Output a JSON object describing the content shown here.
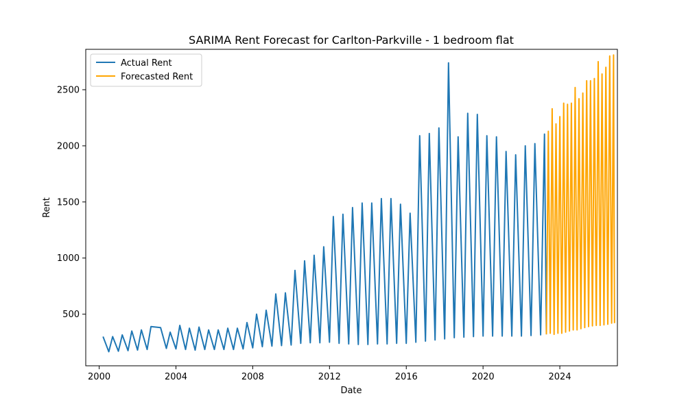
{
  "chart_data": {
    "type": "line",
    "title": "SARIMA Rent Forecast for Carlton-Parkville - 1 bedroom flat",
    "xlabel": "Date",
    "ylabel": "Rent",
    "xlim": [
      1999.3,
      2027.0
    ],
    "ylim": [
      40,
      2860
    ],
    "x_ticks": [
      2000,
      2004,
      2008,
      2012,
      2016,
      2020,
      2024
    ],
    "x_tick_labels": [
      "2000",
      "2004",
      "2008",
      "2012",
      "2016",
      "2020",
      "2024"
    ],
    "y_ticks": [
      500,
      1000,
      1500,
      2000,
      2500
    ],
    "y_tick_labels": [
      "500",
      "1000",
      "1500",
      "2000",
      "2500"
    ],
    "grid": false,
    "legend_position": "upper left",
    "series": [
      {
        "name": "Actual Rent",
        "color": "#1f77b4",
        "points": [
          [
            2000.2,
            300
          ],
          [
            2000.5,
            165
          ],
          [
            2000.7,
            300
          ],
          [
            2001.0,
            170
          ],
          [
            2001.2,
            315
          ],
          [
            2001.5,
            175
          ],
          [
            2001.7,
            350
          ],
          [
            2002.0,
            180
          ],
          [
            2002.2,
            360
          ],
          [
            2002.5,
            185
          ],
          [
            2002.7,
            390
          ],
          [
            2003.2,
            380
          ],
          [
            2003.5,
            195
          ],
          [
            2003.7,
            340
          ],
          [
            2004.0,
            190
          ],
          [
            2004.2,
            400
          ],
          [
            2004.5,
            185
          ],
          [
            2004.7,
            375
          ],
          [
            2005.0,
            180
          ],
          [
            2005.2,
            385
          ],
          [
            2005.5,
            185
          ],
          [
            2005.7,
            360
          ],
          [
            2006.0,
            185
          ],
          [
            2006.2,
            360
          ],
          [
            2006.5,
            185
          ],
          [
            2006.7,
            375
          ],
          [
            2007.0,
            185
          ],
          [
            2007.2,
            375
          ],
          [
            2007.5,
            190
          ],
          [
            2007.7,
            425
          ],
          [
            2008.0,
            200
          ],
          [
            2008.2,
            500
          ],
          [
            2008.5,
            210
          ],
          [
            2008.7,
            535
          ],
          [
            2009.0,
            215
          ],
          [
            2009.2,
            680
          ],
          [
            2009.5,
            220
          ],
          [
            2009.7,
            690
          ],
          [
            2010.0,
            225
          ],
          [
            2010.2,
            890
          ],
          [
            2010.5,
            240
          ],
          [
            2010.7,
            975
          ],
          [
            2011.0,
            245
          ],
          [
            2011.2,
            1025
          ],
          [
            2011.5,
            245
          ],
          [
            2011.7,
            1100
          ],
          [
            2012.0,
            250
          ],
          [
            2012.2,
            1370
          ],
          [
            2012.5,
            240
          ],
          [
            2012.7,
            1390
          ],
          [
            2013.0,
            235
          ],
          [
            2013.2,
            1450
          ],
          [
            2013.5,
            230
          ],
          [
            2013.7,
            1490
          ],
          [
            2014.0,
            230
          ],
          [
            2014.2,
            1490
          ],
          [
            2014.5,
            235
          ],
          [
            2014.7,
            1530
          ],
          [
            2015.0,
            235
          ],
          [
            2015.2,
            1530
          ],
          [
            2015.5,
            240
          ],
          [
            2015.7,
            1480
          ],
          [
            2016.0,
            240
          ],
          [
            2016.2,
            1400
          ],
          [
            2016.5,
            250
          ],
          [
            2016.7,
            2090
          ],
          [
            2017.0,
            260
          ],
          [
            2017.2,
            2110
          ],
          [
            2017.5,
            270
          ],
          [
            2017.7,
            2160
          ],
          [
            2018.0,
            280
          ],
          [
            2018.2,
            2740
          ],
          [
            2018.5,
            290
          ],
          [
            2018.7,
            2080
          ],
          [
            2019.0,
            295
          ],
          [
            2019.2,
            2290
          ],
          [
            2019.5,
            300
          ],
          [
            2019.7,
            2280
          ],
          [
            2020.0,
            305
          ],
          [
            2020.2,
            2090
          ],
          [
            2020.5,
            305
          ],
          [
            2020.7,
            2080
          ],
          [
            2021.0,
            305
          ],
          [
            2021.2,
            1950
          ],
          [
            2021.5,
            305
          ],
          [
            2021.7,
            1920
          ],
          [
            2022.0,
            305
          ],
          [
            2022.2,
            2000
          ],
          [
            2022.5,
            310
          ],
          [
            2022.7,
            2020
          ],
          [
            2023.0,
            315
          ],
          [
            2023.2,
            2105
          ],
          [
            2023.3,
            320
          ]
        ]
      },
      {
        "name": "Forecasted Rent",
        "color": "#ffa500",
        "points": [
          [
            2023.3,
            320
          ],
          [
            2023.4,
            2130
          ],
          [
            2023.5,
            330
          ],
          [
            2023.6,
            2330
          ],
          [
            2023.7,
            320
          ],
          [
            2023.8,
            2195
          ],
          [
            2023.9,
            330
          ],
          [
            2024.0,
            2260
          ],
          [
            2024.1,
            330
          ],
          [
            2024.2,
            2380
          ],
          [
            2024.3,
            340
          ],
          [
            2024.4,
            2370
          ],
          [
            2024.5,
            350
          ],
          [
            2024.6,
            2380
          ],
          [
            2024.7,
            360
          ],
          [
            2024.8,
            2520
          ],
          [
            2024.9,
            360
          ],
          [
            2025.0,
            2420
          ],
          [
            2025.1,
            370
          ],
          [
            2025.2,
            2470
          ],
          [
            2025.3,
            380
          ],
          [
            2025.4,
            2580
          ],
          [
            2025.5,
            390
          ],
          [
            2025.6,
            2580
          ],
          [
            2025.7,
            395
          ],
          [
            2025.8,
            2600
          ],
          [
            2025.9,
            400
          ],
          [
            2026.0,
            2750
          ],
          [
            2026.1,
            400
          ],
          [
            2026.2,
            2640
          ],
          [
            2026.3,
            405
          ],
          [
            2026.4,
            2700
          ],
          [
            2026.5,
            410
          ],
          [
            2026.6,
            2800
          ],
          [
            2026.7,
            420
          ],
          [
            2026.8,
            2810
          ],
          [
            2026.85,
            420
          ]
        ]
      }
    ]
  }
}
